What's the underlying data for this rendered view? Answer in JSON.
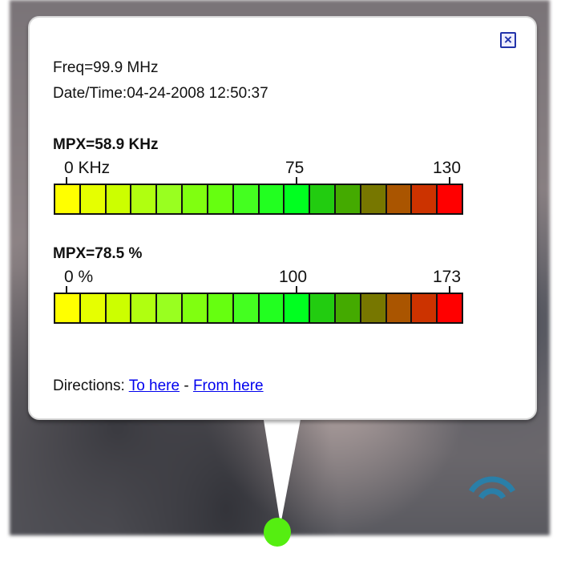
{
  "popup": {
    "freq": "Freq=99.9 MHz",
    "datetime": "Date/Time:04-24-2008 12:50:37",
    "close_icon": "close-x-icon",
    "meters": [
      {
        "title": "MPX=58.9 KHz",
        "ticks": [
          "0 KHz",
          "75",
          "130"
        ],
        "value": 58.9,
        "max": 130
      },
      {
        "title": "MPX=78.5 %",
        "ticks": [
          "0 %",
          "100",
          "173"
        ],
        "value": 78.5,
        "max": 173
      }
    ],
    "segment_colors": [
      "#ffff00",
      "#e6ff00",
      "#ccff00",
      "#b0ff10",
      "#99ff20",
      "#80ff10",
      "#66ff10",
      "#44ff20",
      "#22ff20",
      "#00ff20",
      "#22cc10",
      "#44aa00",
      "#777700",
      "#aa5500",
      "#cc3300",
      "#ff0000"
    ],
    "directions_label": "Directions:",
    "to_here": "To here",
    "separator": "-",
    "from_here": "From here"
  },
  "map": {
    "marker_color": "#55ee11",
    "icon": "wifi-signal-icon"
  }
}
